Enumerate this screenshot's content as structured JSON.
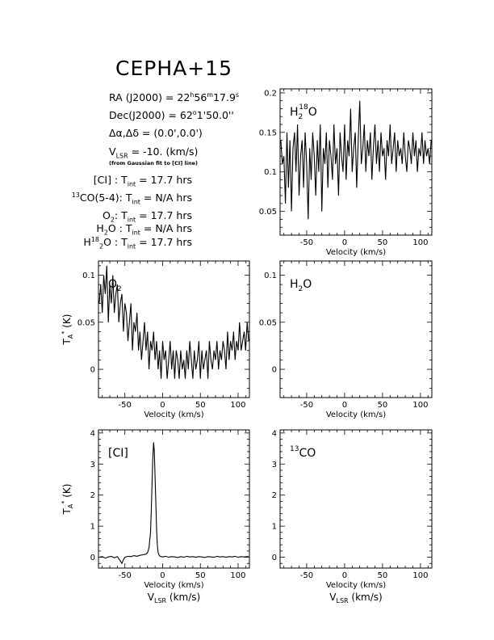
{
  "header": {
    "title": "CEPHA+15",
    "ra": {
      "label": "RA (J2000) =",
      "h": "22",
      "m": "56",
      "s": "17.9"
    },
    "dec": {
      "label": "Dec(J2000) =",
      "deg": "62",
      "rest": "1'50.0''"
    },
    "offset": {
      "label": "Δα,Δδ =",
      "value": "(0.0',0.0')"
    },
    "vlsr": {
      "label_main": "V",
      "label_sub": "LSR",
      "value": "= -10. (km/s)"
    },
    "vlsr_note": "(from Gaussian fit to [CI] line)"
  },
  "integrations": [
    {
      "pre": "",
      "sup": "",
      "sub": "",
      "post": "[CI] :",
      "value": "= 17.7 hrs"
    },
    {
      "pre": "",
      "sup": "13",
      "sub": "",
      "post": "CO(5-4):",
      "value": "= N/A hrs"
    },
    {
      "pre": "O",
      "sup": "",
      "sub": "2",
      "post": ":",
      "value": "= 17.7 hrs"
    },
    {
      "pre": "H",
      "sup": "",
      "sub": "2",
      "post": "O :",
      "value": "= N/A hrs"
    },
    {
      "pre": "H",
      "sup": "18",
      "sub": "2",
      "post": "O :",
      "value": "= 17.7 hrs"
    }
  ],
  "tint": {
    "main": "T",
    "sub": "int"
  },
  "chart_data": [
    {
      "id": "h218o",
      "type": "line",
      "label": "H",
      "label_sub": "2",
      "label_sup": "18",
      "label_post": "O",
      "xlabel": "Velocity (km/s)",
      "xlabel2": "",
      "ylabel": "",
      "xlim": [
        -85,
        115
      ],
      "ylim": [
        0.02,
        0.205
      ],
      "xticks": [
        -50,
        0,
        50,
        100
      ],
      "yticks": [
        0.05,
        0.1,
        0.15,
        0.2
      ],
      "ytick_labels": [
        "0.05",
        "0.1",
        "0.15",
        "0.2"
      ],
      "x": [
        -84,
        -82,
        -80,
        -78,
        -76,
        -74,
        -72,
        -70,
        -68,
        -66,
        -64,
        -62,
        -60,
        -58,
        -56,
        -54,
        -52,
        -50,
        -48,
        -46,
        -44,
        -42,
        -40,
        -38,
        -36,
        -34,
        -32,
        -30,
        -28,
        -26,
        -24,
        -22,
        -20,
        -18,
        -16,
        -14,
        -12,
        -10,
        -8,
        -6,
        -4,
        -2,
        0,
        2,
        4,
        6,
        8,
        10,
        12,
        14,
        16,
        18,
        20,
        22,
        24,
        26,
        28,
        30,
        32,
        34,
        36,
        38,
        40,
        42,
        44,
        46,
        48,
        50,
        52,
        54,
        56,
        58,
        60,
        62,
        64,
        66,
        68,
        70,
        72,
        74,
        76,
        78,
        80,
        82,
        84,
        86,
        88,
        90,
        92,
        94,
        96,
        98,
        100,
        102,
        104,
        106,
        108,
        110,
        112,
        114
      ],
      "y": [
        0.14,
        0.11,
        0.12,
        0.06,
        0.15,
        0.08,
        0.14,
        0.05,
        0.13,
        0.15,
        0.1,
        0.16,
        0.07,
        0.12,
        0.14,
        0.08,
        0.15,
        0.11,
        0.04,
        0.13,
        0.09,
        0.15,
        0.12,
        0.07,
        0.14,
        0.1,
        0.16,
        0.05,
        0.13,
        0.11,
        0.15,
        0.08,
        0.14,
        0.12,
        0.09,
        0.16,
        0.11,
        0.13,
        0.07,
        0.15,
        0.12,
        0.1,
        0.16,
        0.09,
        0.14,
        0.12,
        0.18,
        0.1,
        0.13,
        0.15,
        0.08,
        0.14,
        0.19,
        0.11,
        0.13,
        0.16,
        0.1,
        0.14,
        0.12,
        0.15,
        0.09,
        0.13,
        0.16,
        0.11,
        0.14,
        0.1,
        0.15,
        0.12,
        0.13,
        0.09,
        0.14,
        0.12,
        0.16,
        0.11,
        0.13,
        0.15,
        0.1,
        0.14,
        0.12,
        0.13,
        0.11,
        0.15,
        0.12,
        0.1,
        0.14,
        0.13,
        0.11,
        0.15,
        0.12,
        0.14,
        0.1,
        0.13,
        0.12,
        0.15,
        0.11,
        0.14,
        0.12,
        0.13,
        0.11,
        0.14
      ]
    },
    {
      "id": "o2",
      "type": "line",
      "label": "O",
      "label_sub": "2",
      "label_sup": "",
      "label_post": "",
      "xlabel": "Velocity (km/s)",
      "xlabel2": "",
      "ylabel": "T*A (K)",
      "xlim": [
        -85,
        115
      ],
      "ylim": [
        -0.03,
        0.115
      ],
      "xticks": [
        -50,
        0,
        50,
        100
      ],
      "yticks": [
        0,
        0.05,
        0.1
      ],
      "ytick_labels": [
        "0",
        "0.05",
        "0.1"
      ],
      "x": [
        -84,
        -82,
        -80,
        -78,
        -76,
        -74,
        -72,
        -70,
        -68,
        -66,
        -64,
        -62,
        -60,
        -58,
        -56,
        -54,
        -52,
        -50,
        -48,
        -46,
        -44,
        -42,
        -40,
        -38,
        -36,
        -34,
        -32,
        -30,
        -28,
        -26,
        -24,
        -22,
        -20,
        -18,
        -16,
        -14,
        -12,
        -10,
        -8,
        -6,
        -4,
        -2,
        0,
        2,
        4,
        6,
        8,
        10,
        12,
        14,
        16,
        18,
        20,
        22,
        24,
        26,
        28,
        30,
        32,
        34,
        36,
        38,
        40,
        42,
        44,
        46,
        48,
        50,
        52,
        54,
        56,
        58,
        60,
        62,
        64,
        66,
        68,
        70,
        72,
        74,
        76,
        78,
        80,
        82,
        84,
        86,
        88,
        90,
        92,
        94,
        96,
        98,
        100,
        102,
        104,
        106,
        108,
        110,
        112,
        114
      ],
      "y": [
        0.07,
        0.09,
        0.06,
        0.1,
        0.08,
        0.11,
        0.05,
        0.09,
        0.07,
        0.1,
        0.06,
        0.08,
        0.09,
        0.05,
        0.07,
        0.08,
        0.04,
        0.07,
        0.06,
        0.03,
        0.05,
        0.07,
        0.02,
        0.05,
        0.04,
        0.06,
        0.02,
        0.04,
        0.01,
        0.03,
        0.05,
        0.02,
        0.04,
        0.0,
        0.03,
        0.02,
        0.04,
        0.01,
        0.03,
        0.0,
        0.02,
        -0.01,
        0.03,
        0.01,
        0.02,
        -0.01,
        0.01,
        0.03,
        0.0,
        0.02,
        -0.01,
        0.02,
        0.01,
        -0.01,
        0.02,
        0.0,
        0.01,
        -0.01,
        0.02,
        0.0,
        0.03,
        0.01,
        -0.01,
        0.02,
        0.0,
        0.01,
        0.03,
        -0.01,
        0.02,
        0.0,
        0.01,
        0.02,
        -0.01,
        0.03,
        0.01,
        0.0,
        0.02,
        0.01,
        0.03,
        0.0,
        0.02,
        0.01,
        0.03,
        0.02,
        0.0,
        0.04,
        0.01,
        0.03,
        0.02,
        0.04,
        0.01,
        0.03,
        0.02,
        0.05,
        0.02,
        0.03,
        0.04,
        0.02,
        0.05,
        0.03
      ]
    },
    {
      "id": "h2o",
      "type": "line",
      "label": "H",
      "label_sub": "2",
      "label_sup": "",
      "label_post": "O",
      "xlabel": "Velocity (km/s)",
      "xlabel2": "",
      "ylabel": "",
      "xlim": [
        -85,
        115
      ],
      "ylim": [
        -0.03,
        0.115
      ],
      "xticks": [
        -50,
        0,
        50,
        100
      ],
      "yticks": [
        0,
        0.05,
        0.1
      ],
      "ytick_labels": [
        "0",
        "0.05",
        "0.1"
      ],
      "x": [],
      "y": []
    },
    {
      "id": "ci",
      "type": "line",
      "label": "[CI]",
      "label_sub": "",
      "label_sup": "",
      "label_post": "",
      "xlabel": "Velocity (km/s)",
      "xlabel2": "VLSR (km/s)",
      "ylabel": "T*A (K)",
      "xlim": [
        -85,
        115
      ],
      "ylim": [
        -0.35,
        4.1
      ],
      "xticks": [
        -50,
        0,
        50,
        100
      ],
      "yticks": [
        0,
        1,
        2,
        3,
        4
      ],
      "ytick_labels": [
        "0",
        "1",
        "2",
        "3",
        "4"
      ],
      "x": [
        -84,
        -80,
        -76,
        -72,
        -68,
        -64,
        -60,
        -58,
        -56,
        -54,
        -52,
        -50,
        -46,
        -42,
        -38,
        -34,
        -30,
        -26,
        -22,
        -20,
        -18,
        -16,
        -15,
        -14,
        -13,
        -12,
        -11,
        -10,
        -9,
        -8,
        -7,
        -6,
        -5,
        -4,
        -2,
        0,
        4,
        8,
        12,
        16,
        20,
        24,
        28,
        32,
        36,
        40,
        44,
        48,
        52,
        56,
        60,
        64,
        68,
        72,
        76,
        80,
        84,
        88,
        92,
        96,
        100,
        104,
        108,
        112,
        114
      ],
      "y": [
        0.0,
        0.02,
        -0.03,
        0.01,
        0.03,
        -0.02,
        0.02,
        -0.05,
        -0.12,
        -0.2,
        -0.08,
        0.0,
        0.03,
        0.02,
        0.05,
        0.03,
        0.06,
        0.08,
        0.1,
        0.15,
        0.3,
        0.8,
        1.5,
        2.4,
        3.2,
        3.7,
        3.4,
        2.6,
        1.7,
        0.9,
        0.4,
        0.15,
        0.08,
        0.04,
        0.02,
        0.01,
        0.03,
        0.0,
        0.02,
        0.01,
        -0.01,
        0.02,
        0.0,
        0.03,
        0.01,
        0.02,
        0.0,
        0.02,
        0.01,
        -0.01,
        0.02,
        0.01,
        0.0,
        0.03,
        0.01,
        0.02,
        0.0,
        0.02,
        0.01,
        0.03,
        0.0,
        0.02,
        0.01,
        0.02,
        0.01
      ]
    },
    {
      "id": "13co",
      "type": "line",
      "label": "CO",
      "label_sub": "",
      "label_sup": "13",
      "label_post": "",
      "xlabel": "Velocity (km/s)",
      "xlabel2": "VLSR (km/s)",
      "ylabel": "",
      "xlim": [
        -85,
        115
      ],
      "ylim": [
        -0.35,
        4.1
      ],
      "xticks": [
        -50,
        0,
        50,
        100
      ],
      "yticks": [
        0,
        1,
        2,
        3,
        4
      ],
      "ytick_labels": [
        "0",
        "1",
        "2",
        "3",
        "4"
      ],
      "x": [],
      "y": []
    }
  ]
}
